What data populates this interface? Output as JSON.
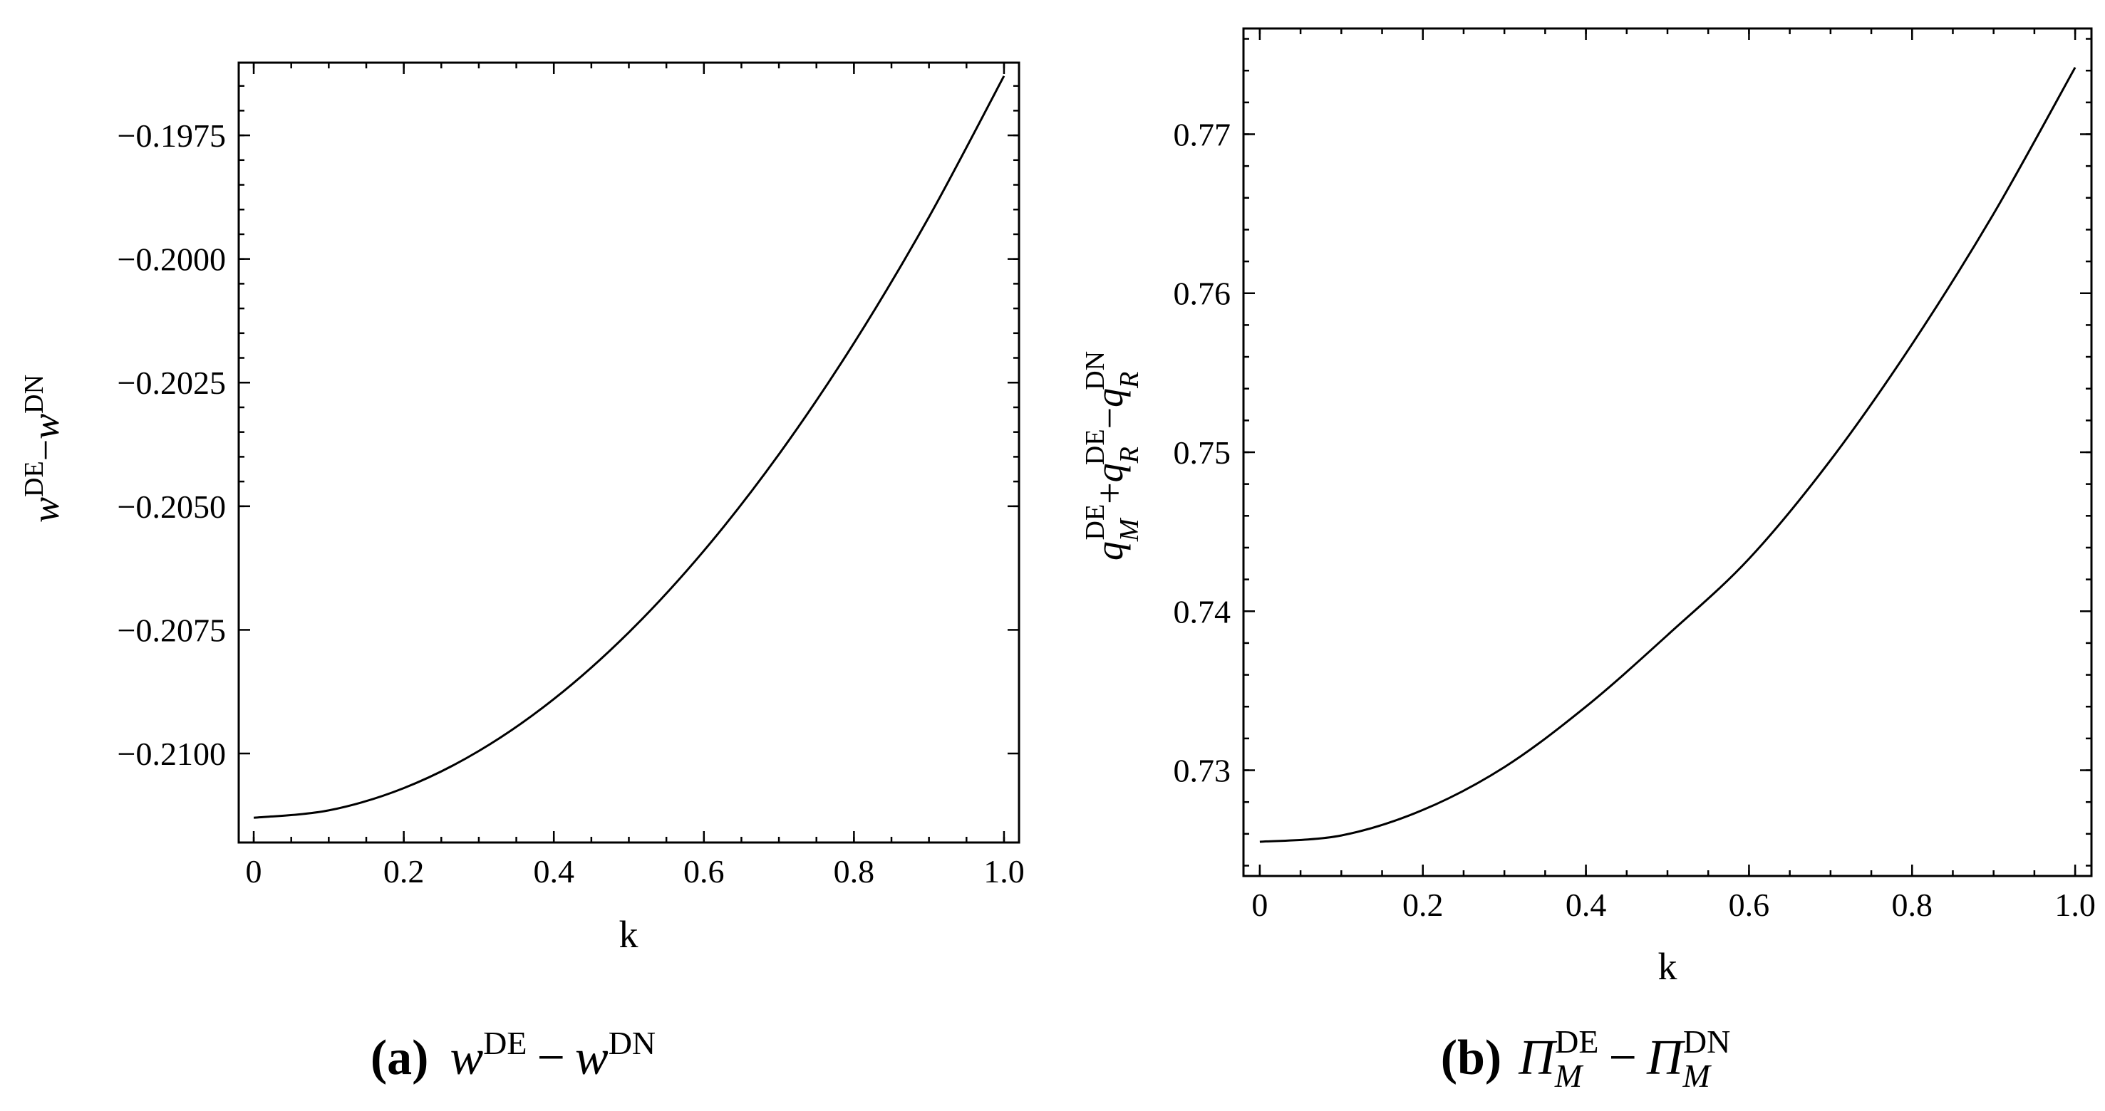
{
  "chart_data": [
    {
      "type": "line",
      "xlabel": "k",
      "ylabel": "w^DE - w^DN",
      "xlim": [
        0,
        1.0
      ],
      "ylim": [
        -0.2118,
        -0.19603
      ],
      "xticks": [
        "0",
        "0.2",
        "0.4",
        "0.6",
        "0.8",
        "1.0"
      ],
      "yticks": [
        "-0.1975",
        "-0.2000",
        "-0.2025",
        "-0.2050",
        "-0.2075",
        "-0.2100"
      ],
      "ytick_values": [
        -0.1975,
        -0.2,
        -0.2025,
        -0.205,
        -0.2075,
        -0.21
      ],
      "series": [
        {
          "x": [
            0,
            0.1,
            0.2,
            0.3,
            0.4,
            0.5,
            0.6,
            0.7,
            0.8,
            0.9,
            1.0
          ],
          "values": [
            -0.2113,
            -0.21115,
            -0.2107,
            -0.20995,
            -0.2089,
            -0.20755,
            -0.2059,
            -0.20395,
            -0.2017,
            -0.19915,
            -0.1963
          ]
        }
      ],
      "caption": {
        "label": "(a)",
        "left": "w",
        "left_sup": "DE",
        "op": "−",
        "right": "w",
        "right_sup": "DN"
      },
      "grid": false
    },
    {
      "type": "line",
      "xlabel": "k",
      "ylabel": "q_M^DE + q_R^DE - q_R^DN",
      "xlim": [
        0,
        1.0
      ],
      "ylim": [
        0.72335,
        0.77665
      ],
      "xticks": [
        "0",
        "0.2",
        "0.4",
        "0.6",
        "0.8",
        "1.0"
      ],
      "yticks": [
        "0.73",
        "0.74",
        "0.75",
        "0.76",
        "0.77"
      ],
      "ytick_values": [
        0.73,
        0.74,
        0.75,
        0.76,
        0.77
      ],
      "series": [
        {
          "x": [
            0,
            0.1,
            0.2,
            0.3,
            0.4,
            0.5,
            0.6,
            0.7,
            0.8,
            0.9,
            1.0
          ],
          "values": [
            0.7255,
            0.7259,
            0.7275,
            0.7302,
            0.734,
            0.7385,
            0.7433,
            0.7495,
            0.7568,
            0.765,
            0.7742
          ]
        }
      ],
      "caption": {
        "label": "(b)",
        "left": "Π",
        "left_sub": "M",
        "left_sup": "DE",
        "op": "−",
        "right": "Π",
        "right_sub": "M",
        "right_sup": "DN"
      },
      "grid": false
    }
  ]
}
